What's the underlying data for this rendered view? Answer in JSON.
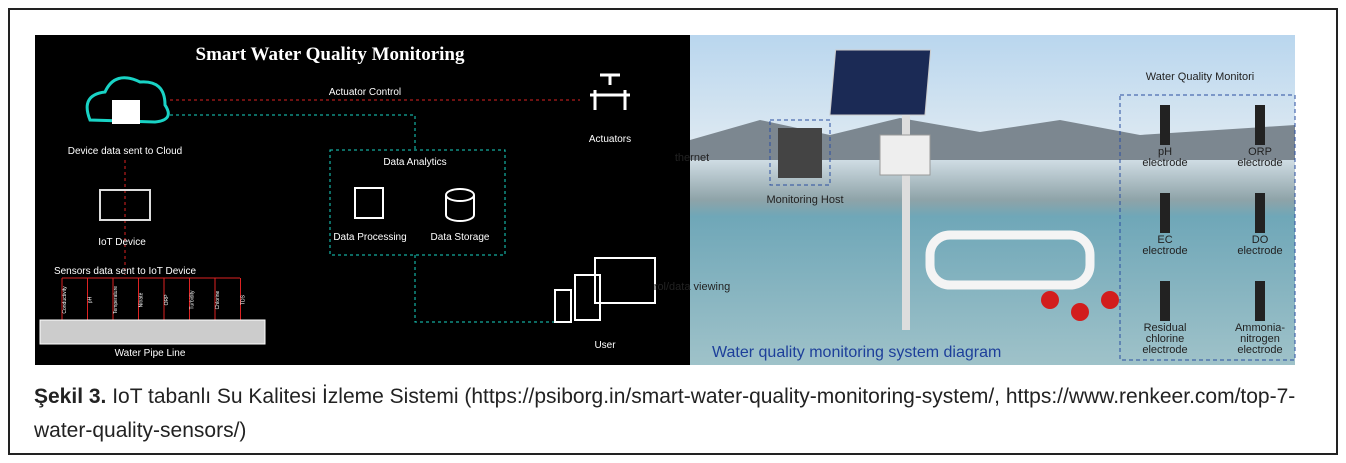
{
  "figure": {
    "left": {
      "title": "Smart Water Quality Monitoring",
      "actuator_control": "Actuator Control",
      "cloud_label": "Device data sent to Cloud",
      "actuators": "Actuators",
      "analytics": "Data Analytics",
      "iot_device": "IoT Device",
      "processing": "Data Processing",
      "storage": "Data Storage",
      "sensors_label": "Sensors data sent to IoT Device",
      "sensors": [
        "Conductivity",
        "pH",
        "Temperature",
        "Nitrate",
        "ORP",
        "Turbidity",
        "Chlorine",
        "TDS"
      ],
      "pipe": "Water Pipe Line",
      "user": "User"
    },
    "right": {
      "header": "Water Quality Monitori",
      "ethernet": "thernet",
      "host": "Monitoring Host",
      "viewing": "rol/data viewing",
      "diagram": "Water quality monitoring system diagram",
      "electrodes": [
        [
          "pH",
          "electrode"
        ],
        [
          "ORP",
          "electrode"
        ],
        [
          "EC",
          "electrode"
        ],
        [
          "DO",
          "electrode"
        ],
        [
          "Residual",
          "chlorine",
          "electrode"
        ],
        [
          "Ammonia-",
          "nitrogen",
          "electrode"
        ]
      ]
    }
  },
  "caption": {
    "label": "Şekil 3.",
    "text": " IoT tabanlı Su Kalitesi İzleme Sistemi (https://psiborg.in/smart-water-quality-monitoring-system/, https://www.renkeer.com/top-7-water-quality-sensors/)"
  }
}
